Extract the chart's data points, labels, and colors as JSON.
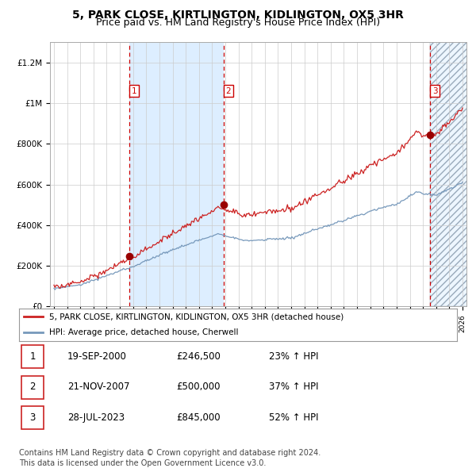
{
  "title": "5, PARK CLOSE, KIRTLINGTON, KIDLINGTON, OX5 3HR",
  "subtitle": "Price paid vs. HM Land Registry's House Price Index (HPI)",
  "title_fontsize": 10,
  "subtitle_fontsize": 9,
  "ylim": [
    0,
    1300000
  ],
  "yticks": [
    0,
    200000,
    400000,
    600000,
    800000,
    1000000,
    1200000
  ],
  "ytick_labels": [
    "£0",
    "£200K",
    "£400K",
    "£600K",
    "£800K",
    "£1M",
    "£1.2M"
  ],
  "x_start_year": 1995,
  "x_end_year": 2026,
  "background_color": "#ffffff",
  "plot_bg_color": "#ffffff",
  "grid_color": "#cccccc",
  "hpi_line_color": "#7799bb",
  "price_line_color": "#cc2222",
  "sale1_date": 2000.72,
  "sale1_price": 246500,
  "sale2_date": 2007.89,
  "sale2_price": 500000,
  "sale3_date": 2023.56,
  "sale3_price": 845000,
  "shading_color": "#ddeeff",
  "legend_line1": "5, PARK CLOSE, KIRTLINGTON, KIDLINGTON, OX5 3HR (detached house)",
  "legend_line2": "HPI: Average price, detached house, Cherwell",
  "table_rows": [
    [
      "1",
      "19-SEP-2000",
      "£246,500",
      "23% ↑ HPI"
    ],
    [
      "2",
      "21-NOV-2007",
      "£500,000",
      "37% ↑ HPI"
    ],
    [
      "3",
      "28-JUL-2023",
      "£845,000",
      "52% ↑ HPI"
    ]
  ],
  "footer": "Contains HM Land Registry data © Crown copyright and database right 2024.\nThis data is licensed under the Open Government Licence v3.0.",
  "footer_fontsize": 7
}
